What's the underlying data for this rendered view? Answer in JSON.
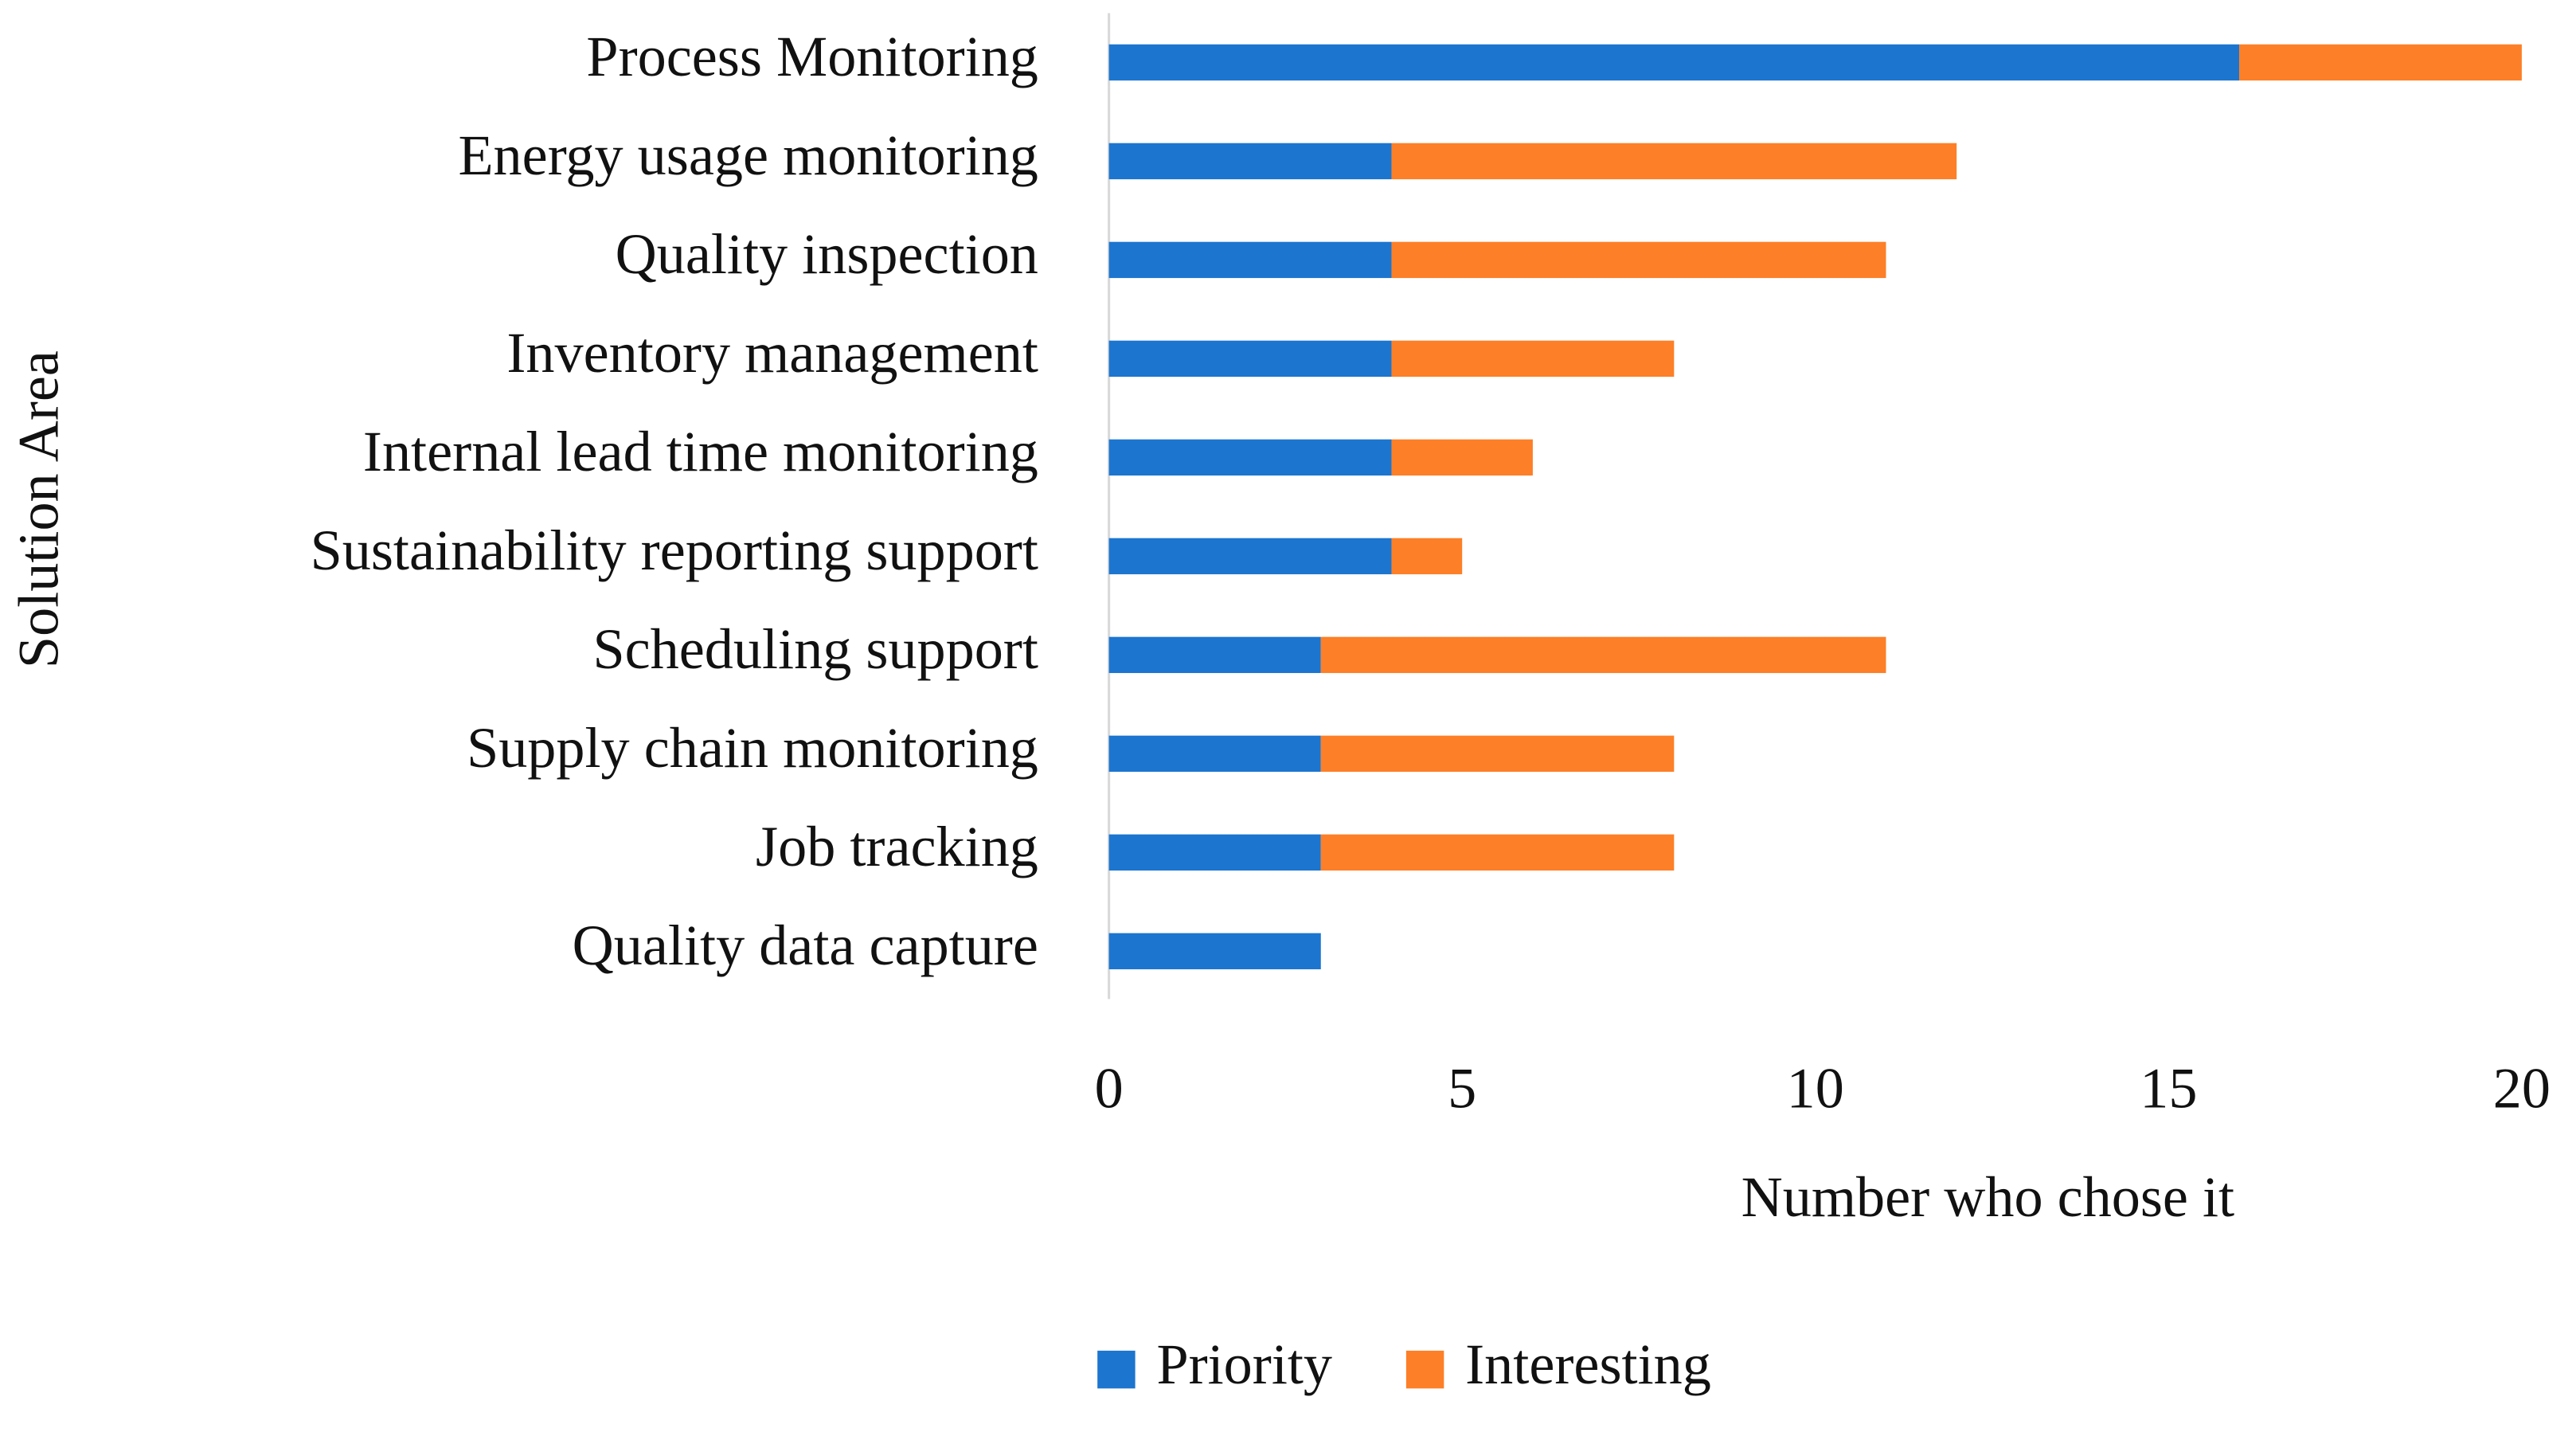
{
  "chart_data": {
    "type": "stacked-bar-horizontal",
    "categories": [
      "Process Monitoring",
      "Energy usage monitoring",
      "Quality inspection",
      "Inventory management",
      "Internal lead time monitoring",
      "Sustainability reporting support",
      "Scheduling support",
      "Supply chain monitoring",
      "Job tracking",
      "Quality data capture"
    ],
    "series": [
      {
        "name": "Priority",
        "color": "#1c75cf",
        "values": [
          16,
          4,
          4,
          4,
          4,
          4,
          3,
          3,
          3,
          3
        ]
      },
      {
        "name": "Interesting",
        "color": "#fd7f27",
        "values": [
          4,
          8,
          7,
          4,
          2,
          1,
          8,
          5,
          5,
          0
        ]
      }
    ],
    "xlabel": "Number who chose it",
    "ylabel": "Solution Area",
    "xlim": [
      0,
      20
    ],
    "xticks": [
      0,
      5,
      10,
      15,
      20
    ],
    "grid": false,
    "legend": "bottom"
  }
}
